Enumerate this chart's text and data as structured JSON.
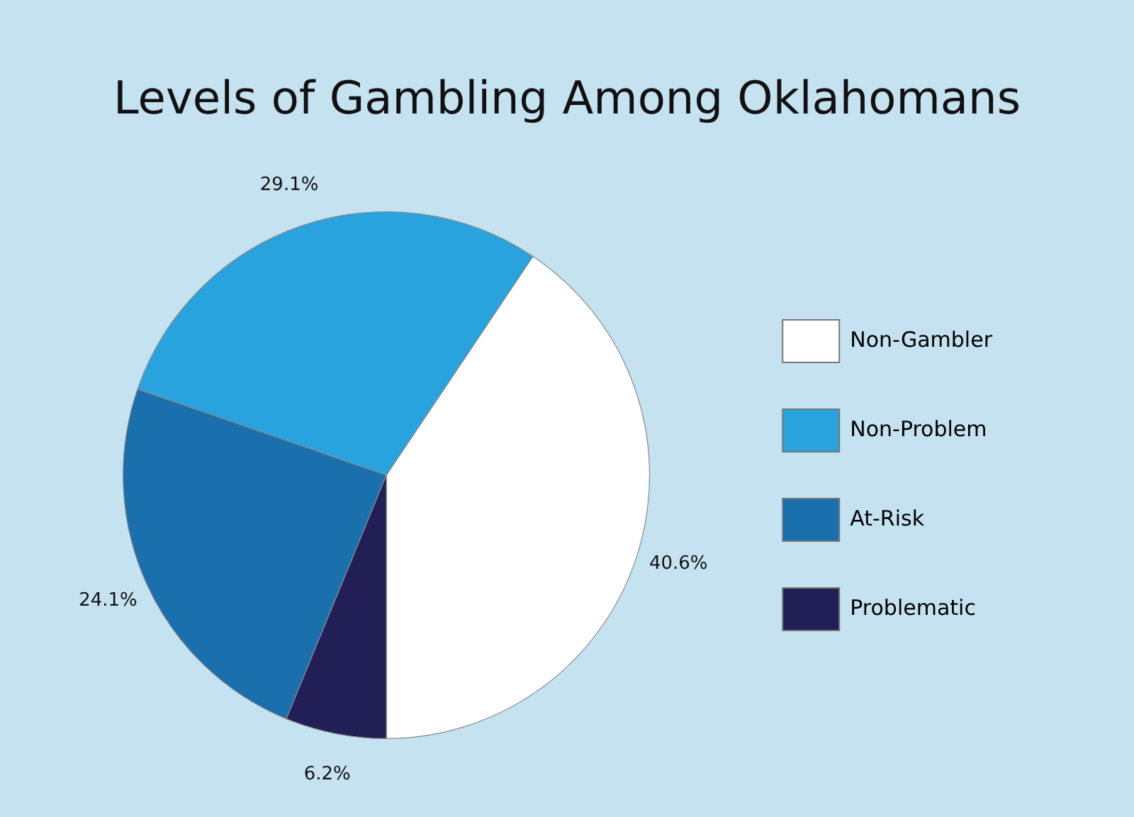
{
  "chart_data": {
    "type": "pie",
    "title": "Levels of Gambling Among Oklahomans",
    "categories": [
      "Non-Gambler",
      "Non-Problem",
      "At-Risk",
      "Problematic"
    ],
    "values": [
      40.6,
      29.1,
      24.1,
      6.2
    ],
    "value_labels": [
      "40.6%",
      "29.1%",
      "24.1%",
      "6.2%"
    ],
    "colors": [
      "#ffffff",
      "#29a3dd",
      "#1a6fad",
      "#211f55"
    ],
    "legend": "right"
  }
}
